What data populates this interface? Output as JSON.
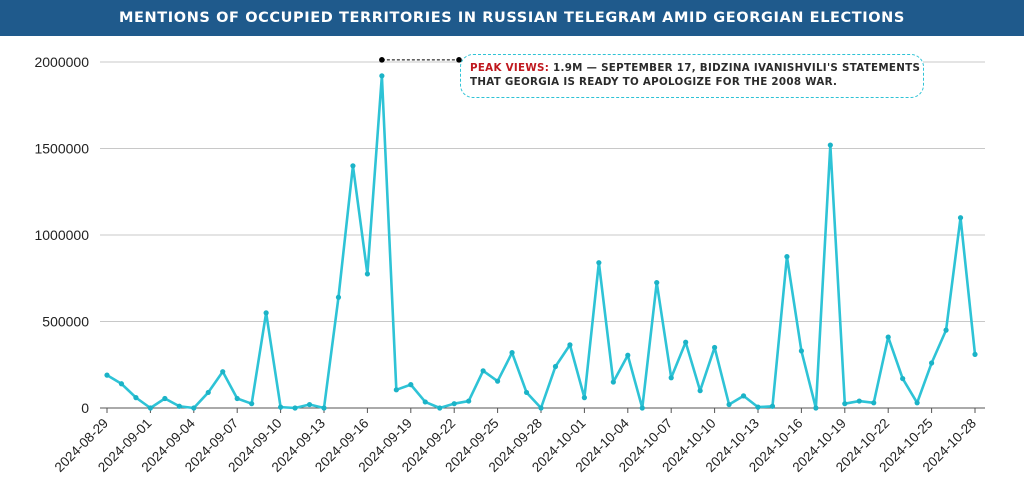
{
  "title": "MENTIONS OF OCCUPIED TERRITORIES IN RUSSIAN TELEGRAM AMID GEORGIAN ELECTIONS",
  "colors": {
    "title_bar": "#1f5a8c",
    "line": "#2ec3d6",
    "marker": "#1bb3c7",
    "grid": "#c8c8c8",
    "annotation_highlight": "#c0181e",
    "annotation_border": "#2ec3d6"
  },
  "annotation": {
    "highlight": "PEAK VIEWS:",
    "line1": " 1.9M — SEPTEMBER 17, BIDZINA IVANISHVILI'S STATEMENTS",
    "line2": "THAT GEORGIA IS READY TO APOLOGIZE FOR THE 2008 WAR.",
    "points_to": {
      "x": "2024-09-17",
      "y": 1920000
    }
  },
  "chart_data": {
    "type": "line",
    "title": "MENTIONS OF OCCUPIED TERRITORIES IN RUSSIAN TELEGRAM AMID GEORGIAN ELECTIONS",
    "xlabel": "",
    "ylabel": "",
    "x_tick_labels": [
      "2024-08-29",
      "2024-09-01",
      "2024-09-04",
      "2024-09-07",
      "2024-09-10",
      "2024-09-13",
      "2024-09-16",
      "2024-09-19",
      "2024-09-22",
      "2024-09-25",
      "2024-09-28",
      "2024-10-01",
      "2024-10-04",
      "2024-10-07",
      "2024-10-10",
      "2024-10-13",
      "2024-10-16",
      "2024-10-19",
      "2024-10-22",
      "2024-10-25",
      "2024-10-28"
    ],
    "y_tick_labels": [
      "0",
      "500000",
      "1000000",
      "1500000",
      "2000000"
    ],
    "ylim": [
      0,
      2000000
    ],
    "grid": "horizontal",
    "legend": "none",
    "x": [
      "2024-08-29",
      "2024-08-30",
      "2024-08-31",
      "2024-09-01",
      "2024-09-02",
      "2024-09-03",
      "2024-09-04",
      "2024-09-05",
      "2024-09-06",
      "2024-09-07",
      "2024-09-08",
      "2024-09-09",
      "2024-09-10",
      "2024-09-11",
      "2024-09-12",
      "2024-09-13",
      "2024-09-14",
      "2024-09-15",
      "2024-09-16",
      "2024-09-17",
      "2024-09-18",
      "2024-09-19",
      "2024-09-20",
      "2024-09-21",
      "2024-09-22",
      "2024-09-23",
      "2024-09-24",
      "2024-09-25",
      "2024-09-26",
      "2024-09-27",
      "2024-09-28",
      "2024-09-29",
      "2024-09-30",
      "2024-10-01",
      "2024-10-02",
      "2024-10-03",
      "2024-10-04",
      "2024-10-05",
      "2024-10-06",
      "2024-10-07",
      "2024-10-08",
      "2024-10-09",
      "2024-10-10",
      "2024-10-11",
      "2024-10-12",
      "2024-10-13",
      "2024-10-14",
      "2024-10-15",
      "2024-10-16",
      "2024-10-17",
      "2024-10-18",
      "2024-10-19",
      "2024-10-20",
      "2024-10-21",
      "2024-10-22",
      "2024-10-23",
      "2024-10-24",
      "2024-10-25",
      "2024-10-26",
      "2024-10-27",
      "2024-10-28"
    ],
    "series": [
      {
        "values": [
          190000,
          140000,
          60000,
          0,
          55000,
          10000,
          0,
          90000,
          210000,
          55000,
          25000,
          550000,
          5000,
          0,
          20000,
          0,
          640000,
          1400000,
          775000,
          1920000,
          105000,
          135000,
          35000,
          0,
          25000,
          40000,
          215000,
          155000,
          320000,
          90000,
          0,
          240000,
          365000,
          60000,
          840000,
          150000,
          305000,
          0,
          725000,
          175000,
          380000,
          100000,
          350000,
          20000,
          70000,
          5000,
          10000,
          875000,
          330000,
          0,
          1520000,
          25000,
          40000,
          30000,
          410000,
          170000,
          30000,
          260000,
          450000,
          1100000,
          310000
        ]
      }
    ]
  }
}
